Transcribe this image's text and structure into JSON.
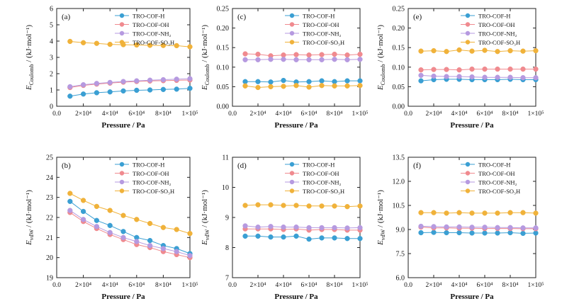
{
  "figure": {
    "x_axis_label": "Pressure / Pa",
    "x_tick_labels": [
      "0.0",
      "2×10⁴",
      "4×10⁴",
      "6×10⁴",
      "8×10⁴",
      "1×10⁵"
    ]
  },
  "legend_labels": [
    "TRO-COF-H",
    "TRO-COF-OH",
    "TRO-COF-NH₂",
    "TRO-COF-SO₃H"
  ],
  "series_colors": {
    "TRO-COF-H": "#3a9fd3",
    "TRO-COF-OH": "#f08a8f",
    "TRO-COF-NH2": "#b69ae0",
    "TRO-COF-SO3H": "#f0b23a"
  },
  "chart_data": [
    {
      "type": "line",
      "panel": "(a)",
      "ylabel_main": "E",
      "ylabel_sub": "Coulomb",
      "ylabel_unit": " / (kJ·mol⁻¹)",
      "xlabel": "Pressure / Pa",
      "xlim": [
        0,
        100000
      ],
      "ylim": [
        0,
        6
      ],
      "y_ticks": [
        0,
        1,
        2,
        3,
        4,
        5,
        6
      ],
      "y_tick_labels": [
        "0",
        "1",
        "2",
        "3",
        "4",
        "5",
        "6"
      ],
      "legend_position": "top-right",
      "x": [
        10000,
        20000,
        30000,
        40000,
        50000,
        60000,
        70000,
        80000,
        90000,
        100000
      ],
      "series": [
        {
          "name": "TRO-COF-H",
          "color": "#3a9fd3",
          "values": [
            0.62,
            0.75,
            0.83,
            0.88,
            0.94,
            0.98,
            1.0,
            1.03,
            1.05,
            1.1
          ]
        },
        {
          "name": "TRO-COF-OH",
          "color": "#f08a8f",
          "values": [
            1.15,
            1.28,
            1.36,
            1.42,
            1.48,
            1.52,
            1.55,
            1.57,
            1.59,
            1.61
          ]
        },
        {
          "name": "TRO-COF-NH₂",
          "color": "#b69ae0",
          "values": [
            1.2,
            1.32,
            1.4,
            1.46,
            1.52,
            1.56,
            1.6,
            1.63,
            1.66,
            1.69
          ]
        },
        {
          "name": "TRO-COF-SO₃H",
          "color": "#f0b23a",
          "values": [
            3.98,
            3.9,
            3.86,
            3.8,
            3.78,
            3.76,
            3.74,
            3.73,
            3.72,
            3.65
          ]
        }
      ]
    },
    {
      "type": "line",
      "panel": "(c)",
      "ylabel_main": "E",
      "ylabel_sub": "Coulomb",
      "ylabel_unit": " / (kJ·mol⁻¹)",
      "xlabel": "Pressure / Pa",
      "xlim": [
        0,
        100000
      ],
      "ylim": [
        0,
        0.25
      ],
      "y_ticks": [
        0,
        0.05,
        0.1,
        0.15,
        0.2,
        0.25
      ],
      "y_tick_labels": [
        "0.00",
        "0.05",
        "0.10",
        "0.15",
        "0.20",
        "0.25"
      ],
      "legend_position": "top-right",
      "x": [
        10000,
        20000,
        30000,
        40000,
        50000,
        60000,
        70000,
        80000,
        90000,
        100000
      ],
      "series": [
        {
          "name": "TRO-COF-H",
          "color": "#3a9fd3",
          "values": [
            0.063,
            0.063,
            0.062,
            0.066,
            0.062,
            0.063,
            0.065,
            0.063,
            0.065,
            0.065
          ]
        },
        {
          "name": "TRO-COF-OH",
          "color": "#f08a8f",
          "values": [
            0.134,
            0.133,
            0.129,
            0.131,
            0.132,
            0.131,
            0.132,
            0.133,
            0.131,
            0.133
          ]
        },
        {
          "name": "TRO-COF-NH₂",
          "color": "#b69ae0",
          "values": [
            0.119,
            0.119,
            0.12,
            0.12,
            0.119,
            0.119,
            0.119,
            0.12,
            0.119,
            0.12
          ]
        },
        {
          "name": "TRO-COF-SO₃H",
          "color": "#f0b23a",
          "values": [
            0.052,
            0.048,
            0.05,
            0.051,
            0.053,
            0.049,
            0.053,
            0.052,
            0.052,
            0.053
          ]
        }
      ]
    },
    {
      "type": "line",
      "panel": "(e)",
      "ylabel_main": "E",
      "ylabel_sub": "Coulomb",
      "ylabel_unit": " / (kJ·mol⁻¹)",
      "xlabel": "Pressure / Pa",
      "xlim": [
        0,
        100000
      ],
      "ylim": [
        0,
        0.25
      ],
      "y_ticks": [
        0,
        0.05,
        0.1,
        0.15,
        0.2,
        0.25
      ],
      "y_tick_labels": [
        "0.00",
        "0.05",
        "0.10",
        "0.15",
        "0.20",
        "0.25"
      ],
      "legend_position": "top-right",
      "x": [
        10000,
        20000,
        30000,
        40000,
        50000,
        60000,
        70000,
        80000,
        90000,
        100000
      ],
      "series": [
        {
          "name": "TRO-COF-H",
          "color": "#3a9fd3",
          "values": [
            0.065,
            0.068,
            0.069,
            0.069,
            0.068,
            0.068,
            0.068,
            0.069,
            0.068,
            0.068
          ]
        },
        {
          "name": "TRO-COF-OH",
          "color": "#f08a8f",
          "values": [
            0.093,
            0.094,
            0.094,
            0.093,
            0.095,
            0.095,
            0.095,
            0.095,
            0.095,
            0.095
          ]
        },
        {
          "name": "TRO-COF-NH₂",
          "color": "#b69ae0",
          "values": [
            0.079,
            0.077,
            0.076,
            0.076,
            0.075,
            0.074,
            0.074,
            0.074,
            0.073,
            0.073
          ]
        },
        {
          "name": "TRO-COF-SO₃H",
          "color": "#f0b23a",
          "values": [
            0.141,
            0.142,
            0.14,
            0.144,
            0.141,
            0.143,
            0.14,
            0.142,
            0.141,
            0.142
          ]
        }
      ]
    },
    {
      "type": "line",
      "panel": "(b)",
      "ylabel_main": "E",
      "ylabel_sub": "vdW",
      "ylabel_unit": " / (kJ·mol⁻¹)",
      "xlabel": "Pressure / Pa",
      "xlim": [
        0,
        100000
      ],
      "ylim": [
        19,
        25
      ],
      "y_ticks": [
        19,
        20,
        21,
        22,
        23,
        24,
        25
      ],
      "y_tick_labels": [
        "19",
        "20",
        "21",
        "22",
        "23",
        "24",
        "25"
      ],
      "legend_position": "top-right",
      "x": [
        10000,
        20000,
        30000,
        40000,
        50000,
        60000,
        70000,
        80000,
        90000,
        100000
      ],
      "series": [
        {
          "name": "TRO-COF-H",
          "color": "#3a9fd3",
          "values": [
            22.8,
            22.3,
            21.85,
            21.6,
            21.3,
            21.0,
            20.85,
            20.6,
            20.45,
            20.2
          ]
        },
        {
          "name": "TRO-COF-OH",
          "color": "#f08a8f",
          "values": [
            22.25,
            21.8,
            21.45,
            21.15,
            20.9,
            20.65,
            20.5,
            20.3,
            20.15,
            20.0
          ]
        },
        {
          "name": "TRO-COF-NH₂",
          "color": "#b69ae0",
          "values": [
            22.35,
            21.9,
            21.55,
            21.25,
            21.0,
            20.8,
            20.6,
            20.45,
            20.3,
            20.1
          ]
        },
        {
          "name": "TRO-COF-SO₃H",
          "color": "#f0b23a",
          "values": [
            23.2,
            22.85,
            22.55,
            22.35,
            22.1,
            21.9,
            21.7,
            21.5,
            21.4,
            21.2
          ]
        }
      ]
    },
    {
      "type": "line",
      "panel": "(d)",
      "ylabel_main": "E",
      "ylabel_sub": "vdW",
      "ylabel_unit": " / (kJ·mol⁻¹)",
      "xlabel": "Pressure / Pa",
      "xlim": [
        0,
        100000
      ],
      "ylim": [
        7,
        11
      ],
      "y_ticks": [
        7,
        8,
        9,
        10,
        11
      ],
      "y_tick_labels": [
        "7",
        "8",
        "9",
        "10",
        "11"
      ],
      "legend_position": "top-right",
      "x": [
        10000,
        20000,
        30000,
        40000,
        50000,
        60000,
        70000,
        80000,
        90000,
        100000
      ],
      "series": [
        {
          "name": "TRO-COF-H",
          "color": "#3a9fd3",
          "values": [
            8.38,
            8.38,
            8.35,
            8.35,
            8.38,
            8.28,
            8.32,
            8.32,
            8.3,
            8.3
          ]
        },
        {
          "name": "TRO-COF-OH",
          "color": "#f08a8f",
          "values": [
            8.62,
            8.62,
            8.62,
            8.6,
            8.62,
            8.58,
            8.6,
            8.6,
            8.58,
            8.58
          ]
        },
        {
          "name": "TRO-COF-NH₂",
          "color": "#b69ae0",
          "values": [
            8.72,
            8.68,
            8.7,
            8.68,
            8.68,
            8.66,
            8.66,
            8.66,
            8.65,
            8.66
          ]
        },
        {
          "name": "TRO-COF-SO₃H",
          "color": "#f0b23a",
          "values": [
            9.4,
            9.42,
            9.42,
            9.4,
            9.4,
            9.38,
            9.38,
            9.38,
            9.36,
            9.38
          ]
        }
      ]
    },
    {
      "type": "line",
      "panel": "(f)",
      "ylabel_main": "E",
      "ylabel_sub": "vdW",
      "ylabel_unit": " / (kJ·mol⁻¹)",
      "xlabel": "Pressure / Pa",
      "xlim": [
        0,
        100000
      ],
      "ylim": [
        6.0,
        13.5
      ],
      "y_ticks": [
        6.0,
        7.5,
        9.0,
        10.5,
        12.0,
        13.5
      ],
      "y_tick_labels": [
        "6.0",
        "7.5",
        "9.0",
        "10.5",
        "12.0",
        "13.5"
      ],
      "legend_position": "top-right",
      "x": [
        10000,
        20000,
        30000,
        40000,
        50000,
        60000,
        70000,
        80000,
        90000,
        100000
      ],
      "series": [
        {
          "name": "TRO-COF-H",
          "color": "#3a9fd3",
          "values": [
            8.8,
            8.82,
            8.8,
            8.8,
            8.78,
            8.78,
            8.78,
            8.8,
            8.76,
            8.78
          ]
        },
        {
          "name": "TRO-COF-OH",
          "color": "#f08a8f",
          "values": [
            9.15,
            9.1,
            9.1,
            9.08,
            9.08,
            9.06,
            9.06,
            9.06,
            9.05,
            9.05
          ]
        },
        {
          "name": "TRO-COF-NH₂",
          "color": "#b69ae0",
          "values": [
            9.2,
            9.18,
            9.16,
            9.16,
            9.14,
            9.14,
            9.12,
            9.12,
            9.1,
            9.1
          ]
        },
        {
          "name": "TRO-COF-SO₃H",
          "color": "#f0b23a",
          "values": [
            10.05,
            10.05,
            10.02,
            10.05,
            10.02,
            10.02,
            10.02,
            10.05,
            10.05,
            10.02
          ]
        }
      ]
    }
  ]
}
